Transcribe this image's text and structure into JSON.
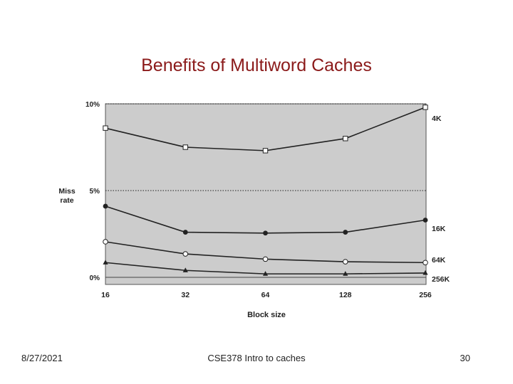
{
  "slide": {
    "title": "Benefits of Multiword Caches",
    "footer_date": "8/27/2021",
    "footer_course": "CSE378 Intro to caches",
    "page_number": "30"
  },
  "colors": {
    "title": "#8b1a1a",
    "plot_background": "#cccccc",
    "series_line": "#222222"
  },
  "chart_data": {
    "type": "line",
    "title": "",
    "xlabel": "Block size",
    "ylabel": "Miss\nrate",
    "x": [
      16,
      32,
      64,
      128,
      256
    ],
    "x_scale": "log2",
    "ytick_labels": [
      "0%",
      "5%",
      "10%"
    ],
    "yticks": [
      0,
      5,
      10
    ],
    "ylim": [
      0,
      10
    ],
    "grid": "dotted horizontal at 5% and 10%",
    "legend": "series labels at right end of lines",
    "series": [
      {
        "name": "4K",
        "marker": "open-square",
        "values": [
          8.6,
          7.5,
          7.3,
          8.0,
          9.8
        ]
      },
      {
        "name": "16K",
        "marker": "filled-circle",
        "values": [
          4.1,
          2.6,
          2.55,
          2.6,
          3.3
        ]
      },
      {
        "name": "64K",
        "marker": "open-circle",
        "values": [
          2.05,
          1.35,
          1.05,
          0.9,
          0.85
        ]
      },
      {
        "name": "256K",
        "marker": "filled-triangle",
        "values": [
          0.85,
          0.4,
          0.2,
          0.2,
          0.25
        ]
      }
    ]
  }
}
